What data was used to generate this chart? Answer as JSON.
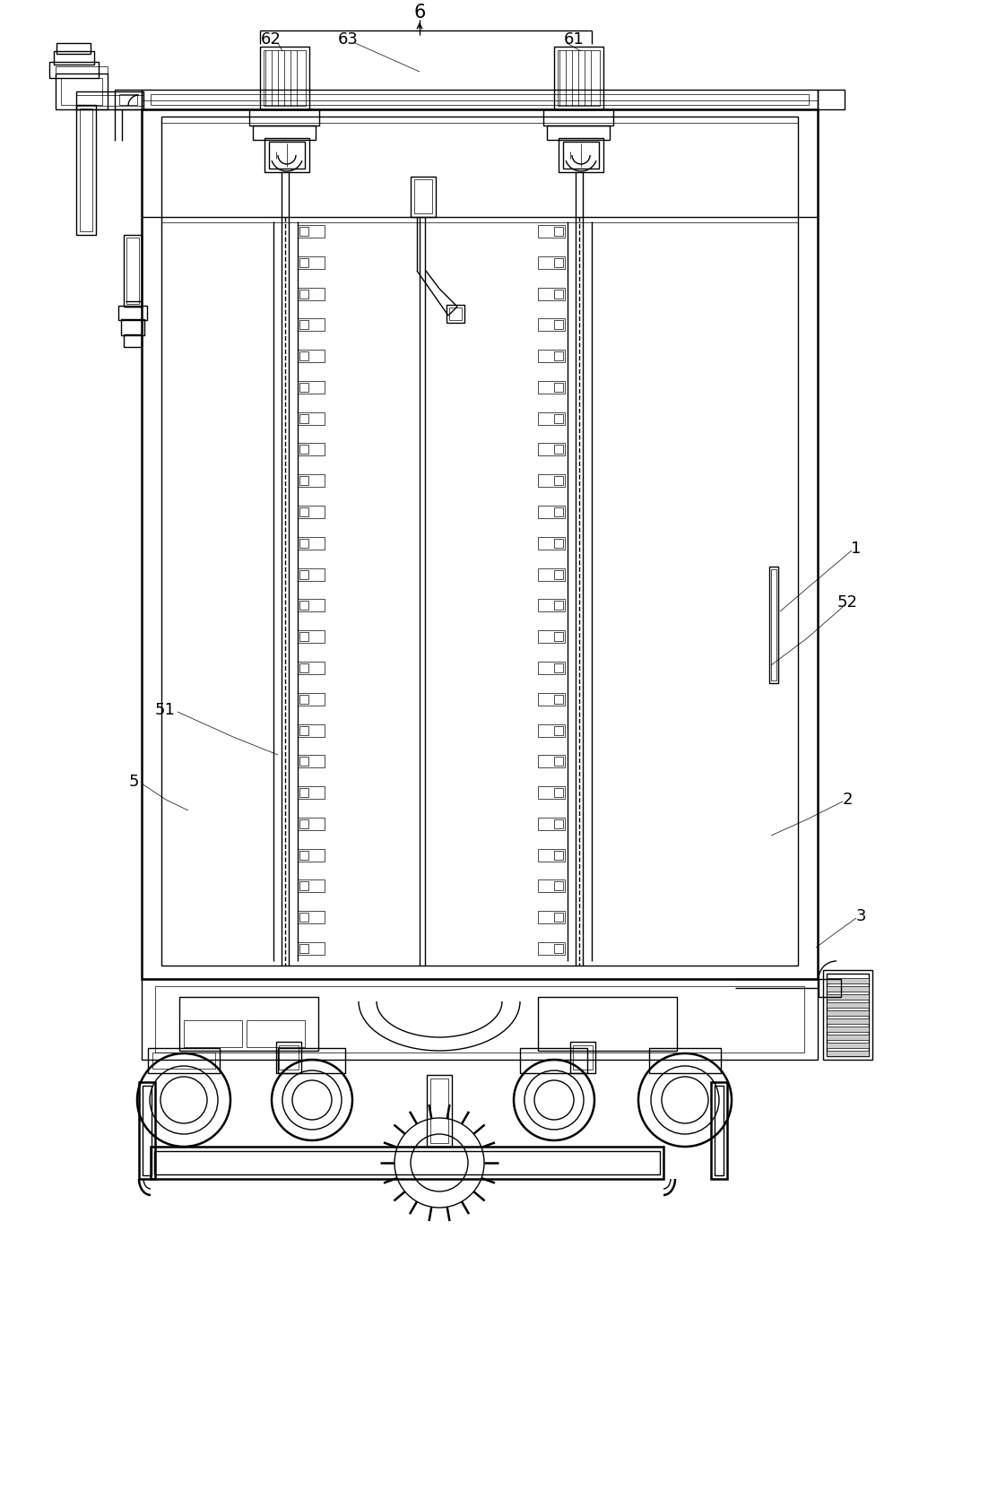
{
  "bg_color": "#ffffff",
  "line_color": "#000000",
  "lw": 1.0,
  "tlw": 0.5,
  "thk": 1.8,
  "fig_width": 11.12,
  "fig_height": 16.62,
  "label_fs": 13
}
